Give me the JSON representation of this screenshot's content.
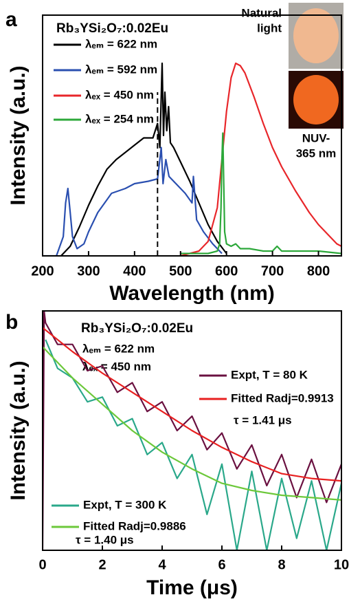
{
  "chart_data": [
    {
      "type": "line",
      "panel": "a",
      "x_label": "Wavelength (nm)",
      "y_label": "Intensity (a.u.)",
      "xlim": [
        200,
        850
      ],
      "ylim": [
        0,
        1
      ],
      "xticks": [
        200,
        300,
        400,
        500,
        600,
        700,
        800
      ],
      "vline": 450,
      "annotations": [
        "Rb₃YSi₂O₇:0.02Eu",
        "Natural",
        "light",
        "NUV-",
        "365 nm"
      ],
      "series": [
        {
          "name": "λₑₘ = 622 nm",
          "color": "#000000",
          "x": [
            240,
            260,
            280,
            300,
            320,
            340,
            360,
            380,
            400,
            420,
            440,
            450,
            455,
            460,
            463,
            466,
            470,
            474,
            478,
            485,
            500,
            520,
            540,
            560,
            580,
            600
          ],
          "values": [
            0.0,
            0.04,
            0.12,
            0.21,
            0.29,
            0.36,
            0.4,
            0.43,
            0.46,
            0.49,
            0.49,
            0.55,
            0.45,
            0.8,
            0.5,
            0.68,
            0.52,
            0.62,
            0.47,
            0.45,
            0.39,
            0.31,
            0.22,
            0.13,
            0.06,
            0.01
          ]
        },
        {
          "name": "λₑₘ = 592 nm",
          "color": "#2a4fb0",
          "x": [
            200,
            230,
            245,
            250,
            255,
            260,
            265,
            275,
            290,
            300,
            320,
            350,
            380,
            400,
            430,
            450,
            458,
            462,
            468,
            475,
            490,
            510,
            525,
            528,
            535,
            550,
            570,
            590
          ],
          "values": [
            0.0,
            0.0,
            0.08,
            0.22,
            0.28,
            0.18,
            0.08,
            0.03,
            0.05,
            0.1,
            0.18,
            0.26,
            0.28,
            0.3,
            0.31,
            0.32,
            0.45,
            0.3,
            0.4,
            0.33,
            0.3,
            0.26,
            0.22,
            0.33,
            0.15,
            0.1,
            0.05,
            0.01
          ]
        },
        {
          "name": "λₑₓ = 450 nm",
          "color": "#e8262a",
          "x": [
            500,
            540,
            560,
            580,
            590,
            600,
            610,
            620,
            630,
            640,
            660,
            680,
            700,
            720,
            750,
            780,
            800,
            820,
            840,
            850
          ],
          "values": [
            0.0,
            0.02,
            0.06,
            0.2,
            0.4,
            0.6,
            0.74,
            0.8,
            0.79,
            0.76,
            0.66,
            0.55,
            0.45,
            0.37,
            0.27,
            0.18,
            0.13,
            0.09,
            0.05,
            0.04
          ]
        },
        {
          "name": "λₑₓ = 254 nm",
          "color": "#2ca83a",
          "x": [
            500,
            560,
            580,
            585,
            588,
            590,
            592,
            594,
            596,
            600,
            610,
            620,
            630,
            650,
            680,
            700,
            710,
            720,
            760,
            800,
            850
          ],
          "values": [
            0.01,
            0.01,
            0.02,
            0.05,
            0.2,
            0.4,
            0.51,
            0.3,
            0.1,
            0.05,
            0.04,
            0.05,
            0.03,
            0.03,
            0.02,
            0.02,
            0.04,
            0.02,
            0.02,
            0.02,
            0.01
          ]
        }
      ]
    },
    {
      "type": "line",
      "panel": "b",
      "x_label": "Time (μs)",
      "y_label": "Intensity (a.u.)",
      "xlim": [
        0,
        10
      ],
      "ylim": [
        0,
        1
      ],
      "xticks": [
        0,
        2,
        4,
        6,
        8,
        10
      ],
      "annotations": [
        "Rb₃YSi₂O₇:0.02Eu",
        "λₑₘ = 622 nm",
        "λₑₓ = 450 nm",
        "τ = 1.41 μs",
        "τ = 1.40 μs"
      ],
      "series": [
        {
          "name": "Expt, T = 80 K",
          "color": "#6a1040",
          "x": [
            0,
            0.05,
            0.1,
            0.5,
            1,
            1.5,
            2,
            2.5,
            3,
            3.5,
            4,
            4.5,
            5,
            5.5,
            6,
            6.5,
            7,
            7.5,
            8,
            8.5,
            9,
            9.5,
            10
          ],
          "values": [
            0,
            1.0,
            0.95,
            0.86,
            0.86,
            0.75,
            0.77,
            0.66,
            0.7,
            0.58,
            0.62,
            0.5,
            0.56,
            0.42,
            0.49,
            0.34,
            0.44,
            0.27,
            0.4,
            0.22,
            0.38,
            0.2,
            0.36
          ]
        },
        {
          "name": "Fitted Radj=0.9913",
          "color": "#e82020",
          "x": [
            0,
            1,
            2,
            3,
            4,
            5,
            6,
            7,
            8,
            9,
            10
          ],
          "values": [
            0.93,
            0.83,
            0.74,
            0.66,
            0.58,
            0.5,
            0.43,
            0.37,
            0.32,
            0.3,
            0.29
          ]
        },
        {
          "name": "Expt, T = 300 K",
          "color": "#2aa88a",
          "x": [
            0.1,
            0.5,
            1,
            1.5,
            2,
            2.5,
            3,
            3.5,
            4,
            4.5,
            5,
            5.5,
            6,
            6.5,
            7,
            7.5,
            8,
            8.5,
            9,
            9.5,
            10
          ],
          "values": [
            0.88,
            0.76,
            0.72,
            0.62,
            0.64,
            0.52,
            0.55,
            0.4,
            0.45,
            0.3,
            0.4,
            0.15,
            0.36,
            0.0,
            0.33,
            0.0,
            0.3,
            0.05,
            0.29,
            0.0,
            0.28
          ]
        },
        {
          "name": "Fitted Radj=0.9886",
          "color": "#6cc83a",
          "x": [
            0,
            1,
            2,
            3,
            4,
            5,
            6,
            7,
            8,
            9,
            10
          ],
          "values": [
            0.85,
            0.72,
            0.61,
            0.5,
            0.41,
            0.34,
            0.28,
            0.25,
            0.23,
            0.22,
            0.21
          ]
        }
      ]
    }
  ]
}
